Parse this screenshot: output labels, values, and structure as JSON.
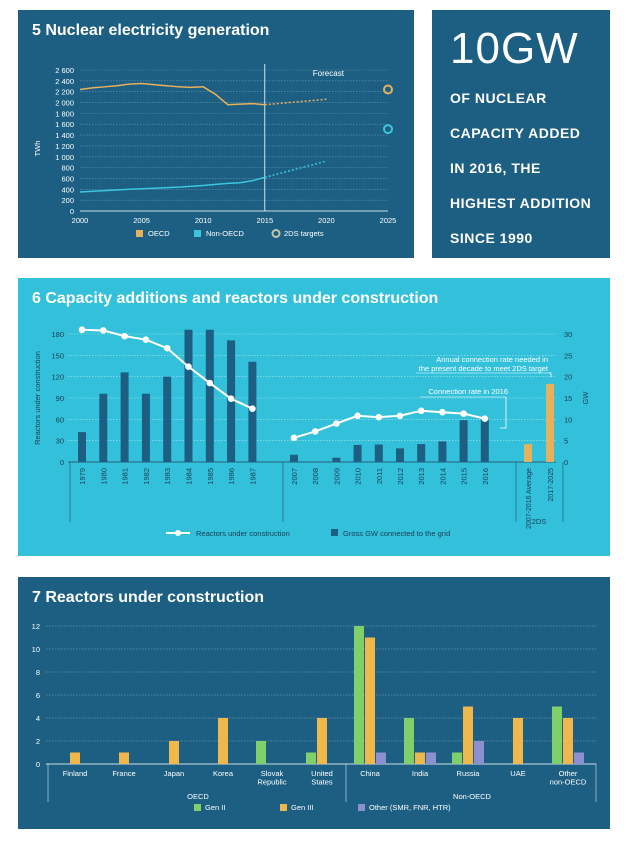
{
  "colors": {
    "oecd": "#e8b05a",
    "non_oecd": "#3cc6de",
    "targets": "#c9c4a8",
    "bars6": "#1c5f82",
    "line6": "#ffffff",
    "gen2": "#7fcf6a",
    "gen3": "#f0b84c",
    "other": "#8c8fd0"
  },
  "panel5": {
    "title": "5 Nuclear electricity generation",
    "chart_data": {
      "type": "line",
      "ylabel": "TWh",
      "ylim": [
        0,
        2600
      ],
      "yticks": [
        "0",
        "200",
        "400",
        "600",
        "800",
        "1 000",
        "1 200",
        "1 400",
        "1 600",
        "1 800",
        "2 000",
        "2 200",
        "2 400",
        "2 600"
      ],
      "xlim": [
        2000,
        2025
      ],
      "xticks": [
        "2000",
        "2005",
        "2010",
        "2015",
        "2020",
        "2025"
      ],
      "annotation": "Forecast",
      "forecast_year": 2015,
      "series": [
        {
          "name": "OECD",
          "color": "#e8b05a",
          "x": [
            2000,
            2001,
            2002,
            2003,
            2004,
            2005,
            2006,
            2007,
            2008,
            2009,
            2010,
            2011,
            2012,
            2013,
            2014,
            2015
          ],
          "y": [
            2240,
            2270,
            2290,
            2310,
            2340,
            2350,
            2330,
            2310,
            2290,
            2280,
            2290,
            2150,
            1960,
            1970,
            1980,
            1960
          ],
          "forecast_x": [
            2015,
            2016,
            2017,
            2018,
            2019,
            2020
          ],
          "forecast_y": [
            1960,
            1980,
            2000,
            2020,
            2040,
            2060
          ]
        },
        {
          "name": "Non-OECD",
          "color": "#3cc6de",
          "x": [
            2000,
            2002,
            2004,
            2006,
            2008,
            2010,
            2011,
            2012,
            2013,
            2014,
            2015
          ],
          "y": [
            350,
            375,
            400,
            420,
            440,
            470,
            490,
            510,
            520,
            560,
            620
          ],
          "forecast_x": [
            2015,
            2016,
            2017,
            2018,
            2019,
            2020
          ],
          "forecast_y": [
            620,
            680,
            740,
            800,
            860,
            920
          ]
        }
      ],
      "targets": {
        "name": "2DS targets",
        "x": [
          2025,
          2025
        ],
        "y": [
          2240,
          1510
        ]
      }
    }
  },
  "bigpanel": {
    "headline": "10GW",
    "lines": [
      "OF NUCLEAR",
      "CAPACITY ADDED",
      "IN 2016, THE",
      "HIGHEST ADDITION",
      "SINCE 1990"
    ]
  },
  "panel6": {
    "title": "6 Capacity additions and reactors under construction",
    "chart_data": {
      "type": "bar",
      "ylabel": "Reactors under construction",
      "ylabel_right": "GW",
      "ylim_left": [
        0,
        180
      ],
      "yticks_left": [
        "0",
        "30",
        "60",
        "90",
        "120",
        "150",
        "180"
      ],
      "ylim_right": [
        0,
        30
      ],
      "yticks_right": [
        "0",
        "5",
        "10",
        "15",
        "20",
        "25",
        "30"
      ],
      "categories": [
        "1979",
        "1980",
        "1981",
        "1982",
        "1983",
        "1984",
        "1985",
        "1986",
        "1987",
        "2007",
        "2008",
        "2009",
        "2010",
        "2011",
        "2012",
        "2013",
        "2014",
        "2015",
        "2016"
      ],
      "gw_connected": [
        7,
        16,
        21,
        16,
        20,
        31,
        31,
        28.5,
        23.5,
        1.7,
        0,
        1,
        4,
        4.1,
        3.2,
        4.2,
        4.8,
        9.8,
        10
      ],
      "reactors_under_construction": [
        186,
        185,
        177,
        172,
        160,
        134,
        111,
        89,
        75,
        34,
        43,
        54,
        65,
        63,
        65,
        72,
        70,
        68,
        61
      ],
      "targets_2ds": {
        "labels": [
          "2007-2016 Average",
          "2017-2025"
        ],
        "group_label": "2DS",
        "values": [
          4.2,
          18.3
        ]
      },
      "annotations": {
        "rate_needed": "Annual connection rate needed in the present decade to meet 2DS target",
        "rate_2016": "Connection rate in 2016"
      },
      "legend": {
        "line": "Reactors under construction",
        "bars": "Gross GW connected to the grid"
      }
    }
  },
  "panel7": {
    "title": "7 Reactors under construction",
    "chart_data": {
      "type": "bar",
      "ylim": [
        0,
        12
      ],
      "yticks": [
        "0",
        "2",
        "4",
        "6",
        "8",
        "10",
        "12"
      ],
      "categories": [
        "Finland",
        "France",
        "Japan",
        "Korea",
        "Slovak Republic",
        "United States",
        "China",
        "India",
        "Russia",
        "UAE",
        "Other non-OECD"
      ],
      "group_labels": [
        "OECD",
        "Non-OECD"
      ],
      "series": [
        {
          "name": "Gen II",
          "values": [
            0,
            0,
            0,
            0,
            2,
            1,
            12,
            4,
            1,
            0,
            5
          ]
        },
        {
          "name": "Gen III",
          "values": [
            1,
            1,
            2,
            4,
            0,
            4,
            11,
            1,
            5,
            4,
            4
          ]
        },
        {
          "name": "Other (SMR, FNR, HTR)",
          "values": [
            0,
            0,
            0,
            0,
            0,
            0,
            1,
            1,
            2,
            0,
            1
          ]
        }
      ]
    }
  }
}
